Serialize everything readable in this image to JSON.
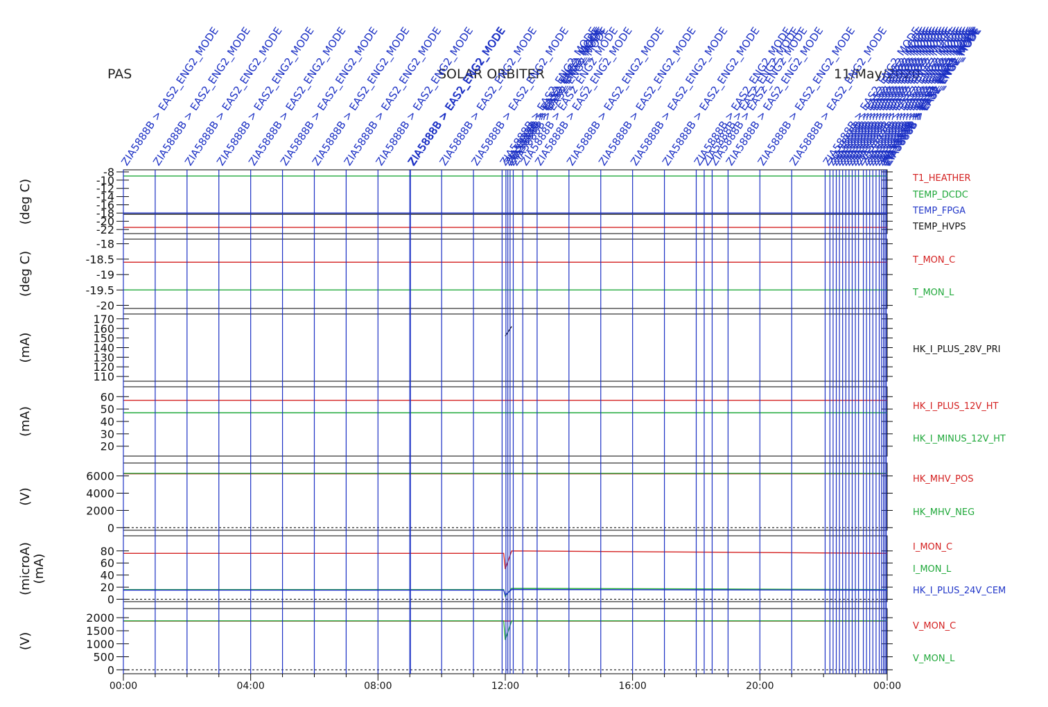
{
  "header": {
    "left": "PAS",
    "center": "SOLAR ORBITER",
    "right": "11/May/2020"
  },
  "colors": {
    "red": "#d42020",
    "green": "#1fa83a",
    "blue": "#2035c8",
    "black": "#111111",
    "event": "#1a2fc4"
  },
  "events": {
    "label": "ZIA5888B > EAS2_ENG2_MODE",
    "times": [
      0.0,
      1.0,
      2.0,
      3.0,
      4.0,
      5.0,
      6.0,
      7.0,
      8.0,
      9.0,
      9.02,
      10.0,
      11.0,
      11.9,
      12.02,
      12.08,
      12.15,
      12.25,
      12.55,
      13.0,
      14.0,
      15.0,
      16.0,
      17.0,
      18.0,
      18.25,
      18.5,
      19.0,
      20.0,
      21.0,
      22.05,
      22.2,
      22.3,
      22.4,
      22.5,
      22.6,
      22.7,
      22.8,
      22.9,
      23.0,
      23.1,
      23.25,
      23.35,
      23.45,
      23.55,
      23.65,
      23.75,
      23.82,
      23.88,
      23.93,
      23.97
    ]
  },
  "chart_data": [
    {
      "type": "line",
      "ylabel": "(deg C)",
      "yticks": [
        -8,
        -10,
        -12,
        -14,
        -16,
        -18,
        -20,
        -22
      ],
      "ylim": [
        -23,
        -7.5
      ],
      "series": [
        {
          "name": "T1_HEATHER",
          "color": "#d42020",
          "values": [
            [
              0,
              -21.5
            ],
            [
              24,
              -21.5
            ]
          ]
        },
        {
          "name": "TEMP_DCDC",
          "color": "#1fa83a",
          "values": [
            [
              0,
              -9.0
            ],
            [
              24,
              -9.0
            ]
          ]
        },
        {
          "name": "TEMP_FPGA",
          "color": "#2035c8",
          "values": [
            [
              0,
              -18.0
            ],
            [
              24,
              -18.0
            ]
          ]
        },
        {
          "name": "TEMP_HVPS",
          "color": "#111111",
          "values": [
            [
              0,
              -18.3
            ],
            [
              24,
              -18.3
            ]
          ]
        }
      ]
    },
    {
      "type": "line",
      "ylabel": "(deg C)",
      "yticks": [
        -18.0,
        -18.5,
        -19.0,
        -19.5,
        -20.0
      ],
      "ylim": [
        -20.1,
        -17.85
      ],
      "series": [
        {
          "name": "T_MON_C",
          "color": "#d42020",
          "values": [
            [
              0,
              -18.6
            ],
            [
              24,
              -18.6
            ]
          ]
        },
        {
          "name": "T_MON_L",
          "color": "#1fa83a",
          "values": [
            [
              0,
              -19.5
            ],
            [
              24,
              -19.5
            ]
          ]
        }
      ]
    },
    {
      "type": "line",
      "ylabel": "(mA)",
      "yticks": [
        170,
        160,
        150,
        140,
        130,
        120,
        110
      ],
      "ylim": [
        105,
        175
      ],
      "series": [
        {
          "name": "HK_I_PLUS_28V_PRI",
          "color": "#111111",
          "values": [
            [
              12.0,
              152
            ],
            [
              12.2,
              162
            ]
          ]
        }
      ]
    },
    {
      "type": "line",
      "ylabel": "(mA)",
      "yticks": [
        60,
        50,
        40,
        30,
        20
      ],
      "ylim": [
        12,
        68
      ],
      "series": [
        {
          "name": "HK_I_PLUS_12V_HT",
          "color": "#d42020",
          "values": [
            [
              0,
              57
            ],
            [
              24,
              57
            ]
          ]
        },
        {
          "name": "HK_I_MINUS_12V_HT",
          "color": "#1fa83a",
          "values": [
            [
              0,
              47
            ],
            [
              24,
              47
            ]
          ]
        }
      ]
    },
    {
      "type": "line",
      "ylabel": "(V)",
      "yticks": [
        6000,
        4000,
        2000,
        0
      ],
      "ylim": [
        -300,
        7500
      ],
      "series": [
        {
          "name": "HK_MHV_POS",
          "color": "#d42020",
          "values": [
            [
              0,
              6250
            ],
            [
              24,
              6250
            ]
          ]
        },
        {
          "name": "HK_MHV_NEG",
          "color": "#1fa83a",
          "values": [
            [
              0,
              6300
            ],
            [
              24,
              6300
            ]
          ]
        }
      ]
    },
    {
      "type": "line",
      "ylabel": "(microA)",
      "ylabel2": "(mA)",
      "yticks": [
        80,
        60,
        40,
        20,
        0
      ],
      "ylim": [
        -4,
        105
      ],
      "series": [
        {
          "name": "I_MON_C",
          "color": "#d42020",
          "values": [
            [
              0,
              76
            ],
            [
              11.95,
              76
            ],
            [
              12.0,
              50
            ],
            [
              12.2,
              80
            ],
            [
              24,
              76
            ]
          ]
        },
        {
          "name": "I_MON_L",
          "color": "#1fa83a",
          "values": [
            [
              0,
              16
            ],
            [
              11.95,
              16
            ],
            [
              12.0,
              5
            ],
            [
              12.2,
              18
            ],
            [
              24,
              16
            ]
          ]
        },
        {
          "name": "HK_I_PLUS_24V_CEM",
          "color": "#2035c8",
          "values": [
            [
              0,
              15
            ],
            [
              11.95,
              15
            ],
            [
              12.0,
              7
            ],
            [
              12.2,
              16
            ],
            [
              24,
              15
            ]
          ]
        }
      ]
    },
    {
      "type": "line",
      "ylabel": "(V)",
      "yticks": [
        2000,
        1500,
        1000,
        500,
        0
      ],
      "ylim": [
        -150,
        2350
      ],
      "series": [
        {
          "name": "V_MON_C",
          "color": "#d42020",
          "values": [
            [
              0,
              1870
            ],
            [
              24,
              1870
            ]
          ]
        },
        {
          "name": "V_MON_L",
          "color": "#1fa83a",
          "values": [
            [
              0,
              1880
            ],
            [
              11.95,
              1880
            ],
            [
              12.0,
              1150
            ],
            [
              12.2,
              1880
            ],
            [
              24,
              1880
            ]
          ]
        }
      ]
    }
  ],
  "xaxis": {
    "min": 0,
    "max": 24,
    "ticks": [
      0,
      4,
      8,
      12,
      16,
      20,
      24
    ],
    "tick_labels": [
      "00:00",
      "04:00",
      "08:00",
      "12:00",
      "16:00",
      "20:00",
      "00:00"
    ]
  }
}
